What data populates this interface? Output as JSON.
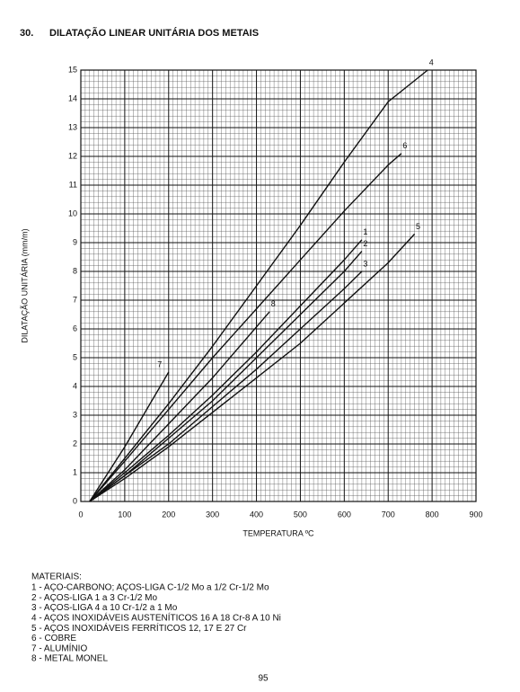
{
  "chart_data": {
    "type": "line",
    "number": "30.",
    "title": "DILATAÇÃO LINEAR UNITÁRIA DOS METAIS",
    "xlabel": "TEMPERATURA ºC",
    "ylabel": "DILATAÇÃO UNITÁRIA (mm/m)",
    "xlim": [
      0,
      900
    ],
    "xticks": [
      0,
      100,
      200,
      300,
      400,
      500,
      600,
      700,
      800,
      900
    ],
    "ylim": [
      0,
      15
    ],
    "yticks": [
      0,
      1,
      2,
      3,
      4,
      5,
      6,
      7,
      8,
      9,
      10,
      11,
      12,
      13,
      14,
      15
    ],
    "grid": true,
    "color": "#111111",
    "series": [
      {
        "name": "1",
        "x": [
          20,
          100,
          200,
          300,
          400,
          500,
          600,
          640
        ],
        "values": [
          0,
          1.0,
          2.3,
          3.7,
          5.2,
          6.8,
          8.4,
          9.1
        ]
      },
      {
        "name": "2",
        "x": [
          20,
          100,
          200,
          300,
          400,
          500,
          600,
          640
        ],
        "values": [
          0,
          0.9,
          2.2,
          3.5,
          5.0,
          6.5,
          8.0,
          8.7
        ]
      },
      {
        "name": "3",
        "x": [
          20,
          100,
          200,
          300,
          400,
          500,
          600,
          640
        ],
        "values": [
          0,
          0.9,
          2.0,
          3.3,
          4.6,
          6.0,
          7.4,
          8.0
        ]
      },
      {
        "name": "4",
        "x": [
          20,
          100,
          200,
          300,
          400,
          500,
          600,
          700,
          790
        ],
        "values": [
          0,
          1.5,
          3.4,
          5.4,
          7.5,
          9.6,
          11.8,
          13.9,
          15
        ]
      },
      {
        "name": "5",
        "x": [
          20,
          100,
          200,
          300,
          400,
          500,
          600,
          700,
          760
        ],
        "values": [
          0,
          0.8,
          1.9,
          3.1,
          4.3,
          5.5,
          6.9,
          8.3,
          9.3
        ]
      },
      {
        "name": "6",
        "x": [
          20,
          100,
          200,
          300,
          400,
          500,
          600,
          700,
          730
        ],
        "values": [
          0,
          1.4,
          3.2,
          5.0,
          6.7,
          8.4,
          10.1,
          11.7,
          12.1
        ]
      },
      {
        "name": "7",
        "x": [
          20,
          100,
          200
        ],
        "values": [
          0,
          1.9,
          4.5
        ]
      },
      {
        "name": "8",
        "x": [
          20,
          100,
          200,
          300,
          430
        ],
        "values": [
          0,
          1.1,
          2.7,
          4.3,
          6.6
        ]
      }
    ],
    "materials_title": "MATERIAIS:",
    "materials": [
      "1 - AÇO-CARBONO; AÇOS-LIGA C-1/2 Mo a 1/2 Cr-1/2 Mo",
      "2 - AÇOS-LIGA 1 a 3 Cr-1/2 Mo",
      "3 - AÇOS-LIGA 4 a 10 Cr-1/2 a 1 Mo",
      "4 - AÇOS INOXIDÁVEIS AUSTENÍTICOS 16 A 18 Cr-8 A 10 Ni",
      "5 - AÇOS INOXIDÁVEIS FERRÍTICOS 12, 17 E 27 Cr",
      "6 - COBRE",
      "7 - ALUMÍNIO",
      "8 - METAL MONEL"
    ],
    "page": "95"
  }
}
